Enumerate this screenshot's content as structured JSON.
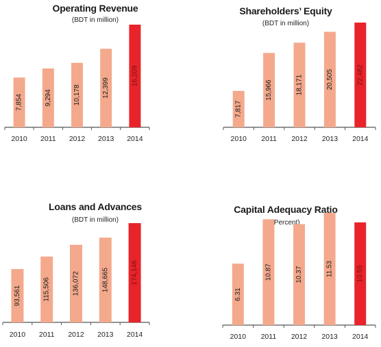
{
  "colors": {
    "normal": "#f4a98c",
    "highlight": "#e8242a",
    "axis": "#555555",
    "label": "#222222"
  },
  "chart_data": [
    {
      "type": "bar",
      "title": "Operating Revenue",
      "subtitle": "(BDT in million)",
      "categories": [
        "2010",
        "2011",
        "2012",
        "2013",
        "2014"
      ],
      "values": [
        7854,
        9294,
        10178,
        12399,
        16209
      ],
      "value_labels": [
        "7,854",
        "9,294",
        "10,178",
        "12,399",
        "16,209"
      ],
      "highlight_index": 4
    },
    {
      "type": "bar",
      "title": "Shareholders’ Equity",
      "subtitle": "(BDT in million)",
      "categories": [
        "2010",
        "2011",
        "2012",
        "2013",
        "2014"
      ],
      "values": [
        7817,
        15966,
        18171,
        20505,
        22482
      ],
      "value_labels": [
        "7,817",
        "15,966",
        "18,171",
        "20,505",
        "22,482"
      ],
      "highlight_index": 4
    },
    {
      "type": "bar",
      "title": "Loans and Advances",
      "subtitle": "(BDT in million)",
      "categories": [
        "2010",
        "2011",
        "2012",
        "2013",
        "2014"
      ],
      "values": [
        93561,
        115506,
        136072,
        148665,
        174146
      ],
      "value_labels": [
        "93,561",
        "115,506",
        "136,072",
        "148,665",
        "174,146"
      ],
      "highlight_index": 4
    },
    {
      "type": "bar",
      "title": "Capital Adequacy Ratio",
      "subtitle": "(Percent)",
      "categories": [
        "2010",
        "2011",
        "2012",
        "2013",
        "2014"
      ],
      "values": [
        6.31,
        10.87,
        10.37,
        11.53,
        10.55
      ],
      "value_labels": [
        "6.31",
        "10.87",
        "10.37",
        "11.53",
        "10.55"
      ],
      "highlight_index": 4
    }
  ]
}
